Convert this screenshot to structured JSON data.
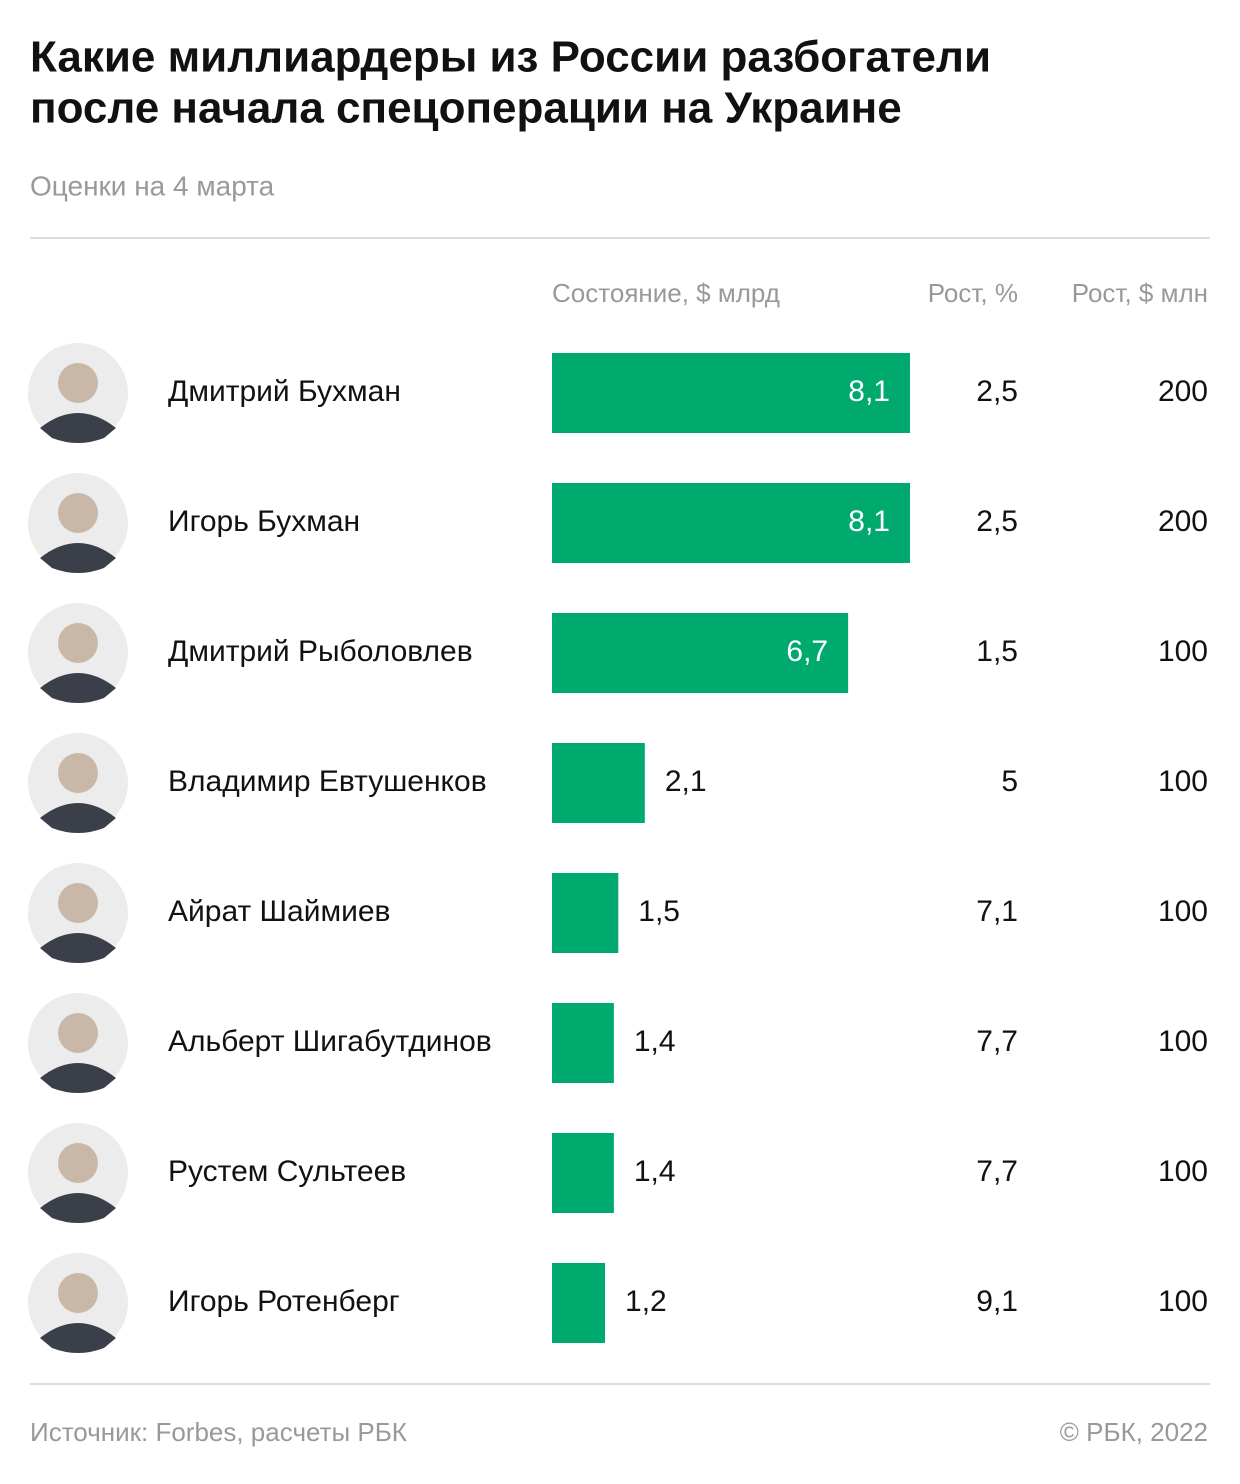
{
  "chart_data": {
    "type": "bar",
    "orientation": "horizontal",
    "title": [
      "Какие миллиардеры из России разбогатели",
      "после начала спецоперации на Украине"
    ],
    "subtitle": "Оценки на 4 марта",
    "value_label": "Состояние, $ млрд",
    "color": "#00a96e",
    "categories": [
      "Дмитрий Бухман",
      "Игорь Бухман",
      "Дмитрий Рыболовлев",
      "Владимир Евтушенков",
      "Айрат Шаймиев",
      "Альберт Шигабутдинов",
      "Рустем Сультеев",
      "Игорь Ротенберг"
    ],
    "values": [
      8.1,
      8.1,
      6.7,
      2.1,
      1.5,
      1.4,
      1.4,
      1.2
    ],
    "value_labels": [
      "8,1",
      "8,1",
      "6,7",
      "2,1",
      "1,5",
      "1,4",
      "1,4",
      "1,2"
    ],
    "columns": [
      {
        "name": "Рост, %",
        "values": [
          "2,5",
          "2,5",
          "1,5",
          "5",
          "7,1",
          "7,7",
          "7,7",
          "9,1"
        ]
      },
      {
        "name": "Рост, $ млн",
        "values": [
          "200",
          "200",
          "100",
          "100",
          "100",
          "100",
          "100",
          "100"
        ]
      }
    ],
    "source": "Источник: Forbes, расчеты РБК",
    "copyright": "© РБК, 2022"
  }
}
